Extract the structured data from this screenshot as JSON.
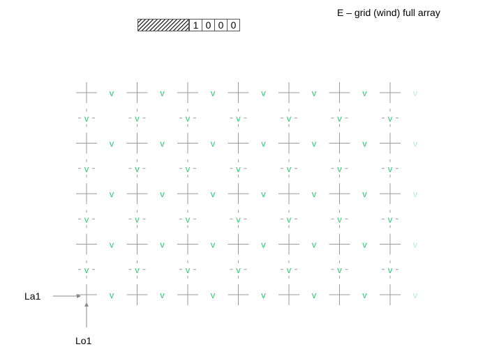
{
  "header": {
    "title": "E – grid (wind) full array"
  },
  "scanning_mode": {
    "bits": [
      "1",
      "0",
      "0",
      "0"
    ]
  },
  "grid": {
    "point_symbol": "v",
    "main_rows": 5,
    "staggered_rows": 4,
    "columns": 7,
    "colors": {
      "point": "#2ecc71",
      "point_faded": "#bdebcf",
      "crosshair": "#999999",
      "arrow": "#888888"
    }
  },
  "labels": {
    "latitude_origin": "La1",
    "longitude_origin": "Lo1"
  }
}
